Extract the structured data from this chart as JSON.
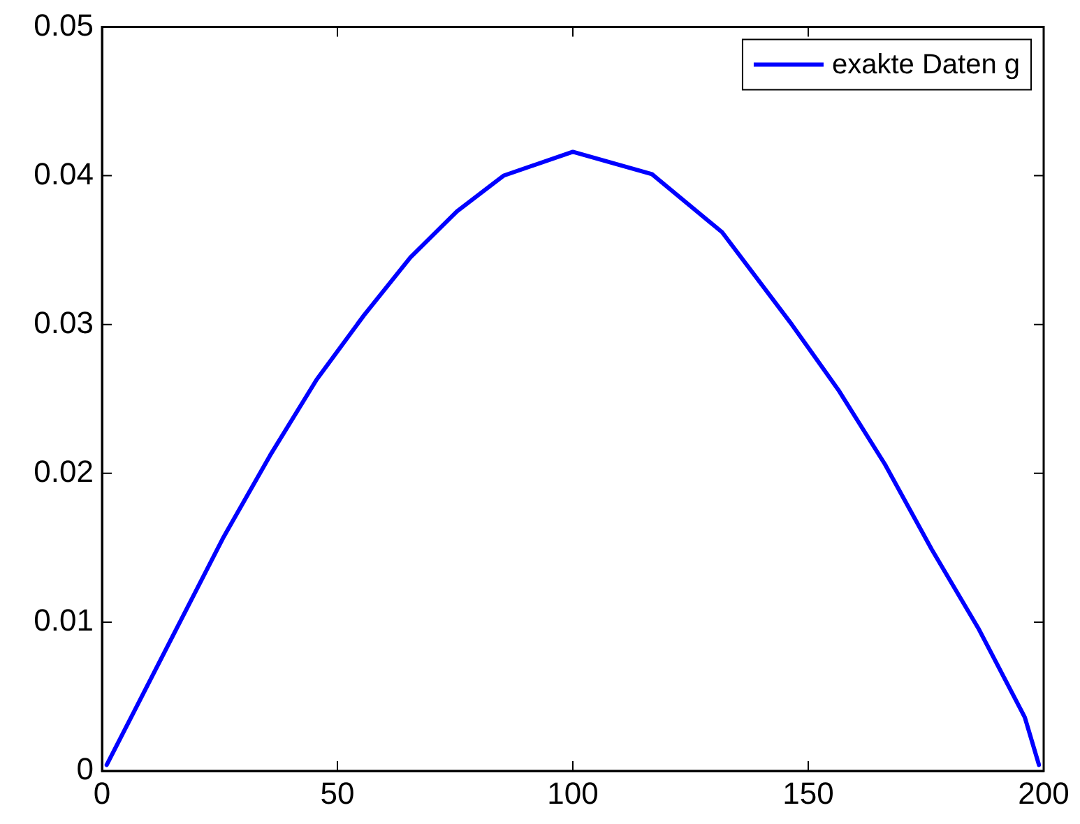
{
  "chart_data": {
    "type": "line",
    "x": [
      1,
      15.9,
      25.8,
      35.7,
      45.6,
      55.6,
      65.5,
      75.4,
      85.3,
      100,
      116.8,
      131.7,
      146.5,
      156.4,
      166.3,
      176.2,
      186.1,
      196,
      199
    ],
    "series": [
      {
        "name": "exakte Daten g",
        "color": "#0000ff",
        "values": [
          0.0004,
          0.0096,
          0.0157,
          0.0212,
          0.0263,
          0.0306,
          0.0345,
          0.0376,
          0.04,
          0.0416,
          0.0401,
          0.0362,
          0.03,
          0.0256,
          0.0206,
          0.0149,
          0.0096,
          0.0036,
          0.0004
        ]
      }
    ],
    "xlim": [
      0,
      200
    ],
    "xticks": [
      0,
      50,
      100,
      150,
      200
    ],
    "ylim": [
      0,
      0.05
    ],
    "yticks": [
      0,
      0.01,
      0.02,
      0.03,
      0.04,
      0.05
    ],
    "grid": false,
    "legend": "top right",
    "marker": "none",
    "line_style": "solid"
  }
}
